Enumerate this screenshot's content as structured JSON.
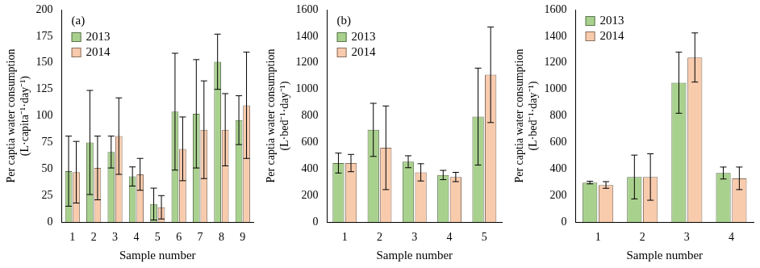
{
  "chart_data": [
    {
      "type": "bar",
      "title": "(a)",
      "x_label": "Sample number",
      "y_label": [
        "Per captia water consumption",
        "(L·capita⁻¹·day⁻¹)"
      ],
      "categories": [
        "1",
        "2",
        "3",
        "4",
        "5",
        "6",
        "7",
        "8",
        "9"
      ],
      "series": [
        {
          "name": "2013",
          "color": "#a9d18e",
          "values": [
            48,
            75,
            66,
            43,
            17,
            104,
            102,
            151,
            96
          ],
          "errors": [
            33,
            49,
            15,
            9,
            15,
            55,
            51,
            26,
            23
          ]
        },
        {
          "name": "2014",
          "color": "#f8cbad",
          "values": [
            47,
            51,
            81,
            45,
            14,
            69,
            87,
            87,
            110
          ],
          "errors": [
            29,
            30,
            36,
            15,
            11,
            30,
            46,
            34,
            50
          ]
        }
      ],
      "ylim": [
        0,
        200
      ],
      "yticks": [
        0,
        25,
        50,
        75,
        100,
        125,
        150,
        175,
        200
      ],
      "grid": false,
      "legend": "top-left"
    },
    {
      "type": "bar",
      "title": "(b)",
      "x_label": "Sample number",
      "y_label": [
        "Per captia water consumption",
        "(L·bed⁻¹·day⁻¹)"
      ],
      "categories": [
        "1",
        "2",
        "3",
        "4",
        "5"
      ],
      "series": [
        {
          "name": "2013",
          "color": "#a9d18e",
          "values": [
            445,
            695,
            455,
            355,
            795
          ],
          "errors": [
            75,
            200,
            45,
            35,
            365
          ]
        },
        {
          "name": "2014",
          "color": "#f8cbad",
          "values": [
            445,
            560,
            375,
            340,
            1110
          ],
          "errors": [
            65,
            315,
            65,
            35,
            360
          ]
        }
      ],
      "ylim": [
        0,
        1600
      ],
      "yticks": [
        0,
        200,
        400,
        600,
        800,
        1000,
        1200,
        1400,
        1600
      ],
      "grid": false,
      "legend": "top-left"
    },
    {
      "type": "bar",
      "x_label": "Sample number",
      "y_label": [
        "Per captia water consumption",
        "(L·bed⁻¹·day⁻¹)"
      ],
      "categories": [
        "1",
        "2",
        "3",
        "4"
      ],
      "series": [
        {
          "name": "2013",
          "color": "#a9d18e",
          "values": [
            298,
            340,
            1050,
            370
          ],
          "errors": [
            10,
            165,
            230,
            45
          ]
        },
        {
          "name": "2014",
          "color": "#f8cbad",
          "values": [
            280,
            340,
            1240,
            330
          ],
          "errors": [
            25,
            175,
            185,
            85
          ]
        }
      ],
      "ylim": [
        0,
        1600
      ],
      "yticks": [
        0,
        200,
        400,
        600,
        800,
        1000,
        1200,
        1400,
        1600
      ],
      "grid": false,
      "legend": "top-left"
    }
  ]
}
